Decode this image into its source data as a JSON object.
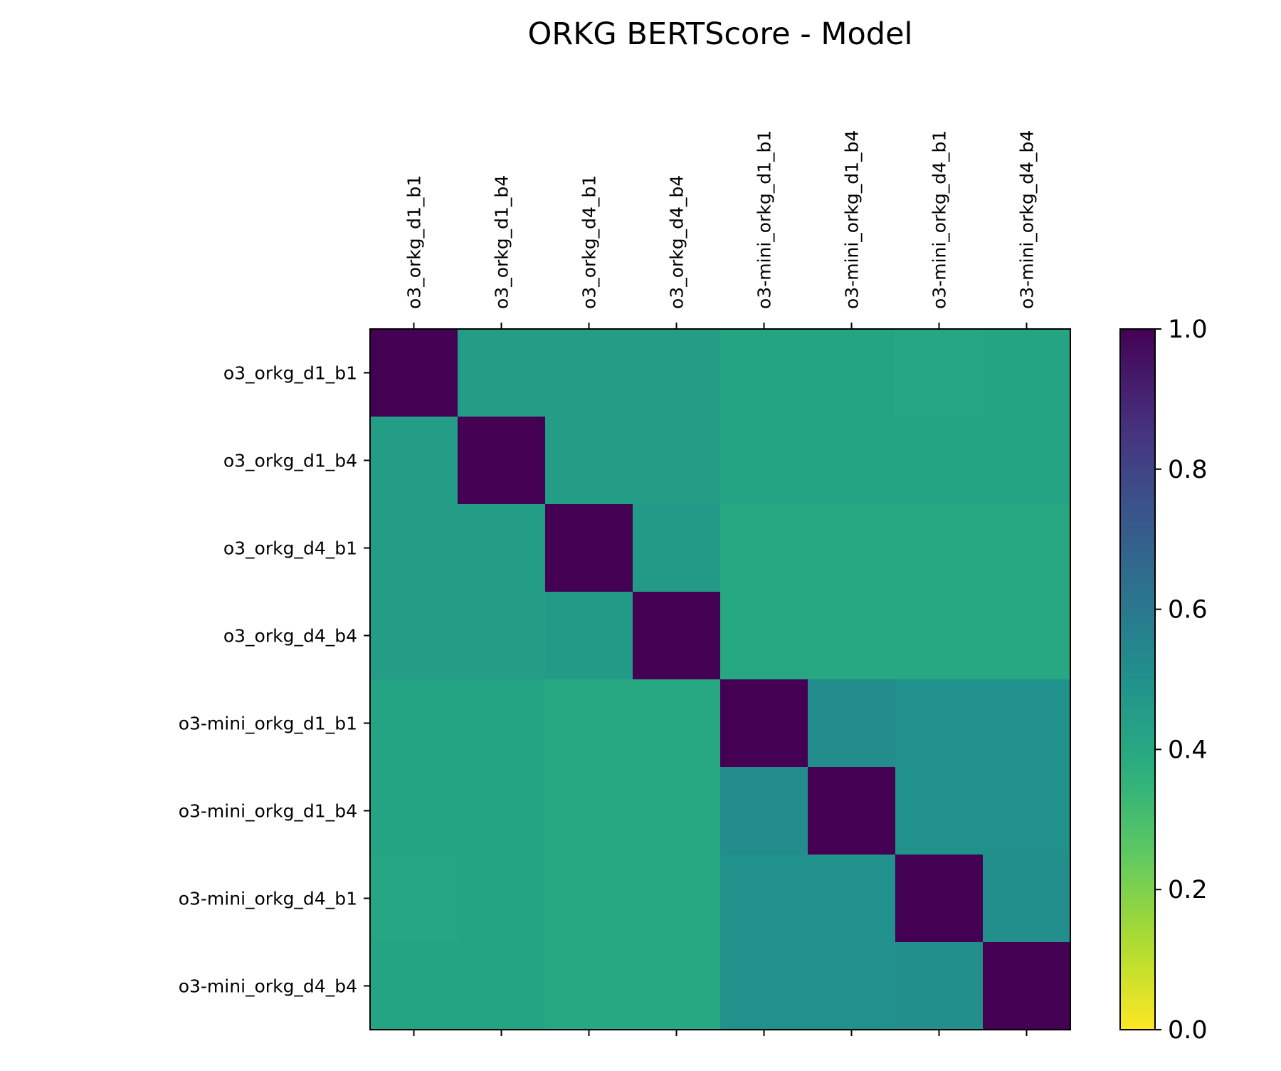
{
  "chart_data": {
    "type": "heatmap",
    "title": "ORKG BERTScore - Model",
    "x_labels": [
      "o3_orkg_d1_b1",
      "o3_orkg_d1_b4",
      "o3_orkg_d4_b1",
      "o3_orkg_d4_b4",
      "o3-mini_orkg_d1_b1",
      "o3-mini_orkg_d1_b4",
      "o3-mini_orkg_d4_b1",
      "o3-mini_orkg_d4_b4"
    ],
    "y_labels": [
      "o3_orkg_d1_b1",
      "o3_orkg_d1_b4",
      "o3_orkg_d4_b1",
      "o3_orkg_d4_b4",
      "o3-mini_orkg_d1_b1",
      "o3-mini_orkg_d1_b4",
      "o3-mini_orkg_d4_b1",
      "o3-mini_orkg_d4_b4"
    ],
    "values": [
      [
        1.0,
        0.45,
        0.45,
        0.45,
        0.42,
        0.42,
        0.41,
        0.42
      ],
      [
        0.45,
        1.0,
        0.45,
        0.45,
        0.42,
        0.42,
        0.42,
        0.42
      ],
      [
        0.45,
        0.45,
        1.0,
        0.46,
        0.4,
        0.4,
        0.4,
        0.4
      ],
      [
        0.45,
        0.45,
        0.46,
        1.0,
        0.4,
        0.4,
        0.4,
        0.4
      ],
      [
        0.42,
        0.42,
        0.4,
        0.4,
        1.0,
        0.52,
        0.5,
        0.5
      ],
      [
        0.42,
        0.42,
        0.4,
        0.4,
        0.52,
        1.0,
        0.5,
        0.5
      ],
      [
        0.41,
        0.42,
        0.4,
        0.4,
        0.5,
        0.5,
        1.0,
        0.51
      ],
      [
        0.42,
        0.42,
        0.4,
        0.4,
        0.5,
        0.5,
        0.51,
        1.0
      ]
    ],
    "colormap": "viridis_r",
    "vmin": 0.0,
    "vmax": 1.0,
    "colorbar_ticks": [
      "0.0",
      "0.2",
      "0.4",
      "0.6",
      "0.8",
      "1.0"
    ],
    "x_tick_position": "top",
    "grid": false
  }
}
